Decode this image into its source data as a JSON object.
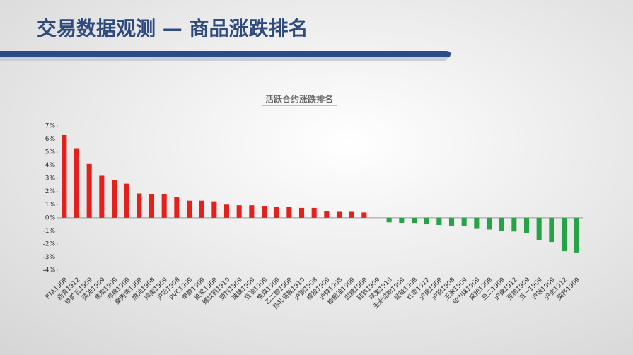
{
  "header": {
    "title": "交易数据观测 — 商品涨跌排名"
  },
  "chart_data": {
    "type": "bar",
    "title": "活跃合约涨跌排名",
    "categories": [
      "PTA1909",
      "沥青1912",
      "铁矿石1909",
      "菜油1909",
      "焦炭1909",
      "郑棉1909",
      "聚丙烯1909",
      "燃油1908",
      "鸡蛋1909",
      "沪铅1908",
      "PVC1909",
      "甲醇1909",
      "纸浆1909",
      "螺纹钢1910",
      "塑料1909",
      "玻璃1909",
      "豆油1909",
      "焦煤1909",
      "乙二醇1909",
      "热轧卷板1910",
      "沪铜1908",
      "橡胶1909",
      "沪锌1908",
      "棕榈油1909",
      "白糖1909",
      "硅铁1909",
      "苹果1910",
      "玉米淀粉1909",
      "锰硅1909",
      "红枣1912",
      "沪锡1909",
      "沪铝1908",
      "玉米1909",
      "动力煤1909",
      "菜粕1909",
      "豆二1909",
      "沪镍1912",
      "豆粕1909",
      "豆一1909",
      "沪银1909",
      "沪金1912",
      "菜籽1909"
    ],
    "values": [
      6.3,
      5.3,
      4.1,
      3.2,
      2.85,
      2.6,
      1.85,
      1.8,
      1.8,
      1.6,
      1.3,
      1.3,
      1.25,
      1.0,
      0.95,
      0.95,
      0.85,
      0.8,
      0.8,
      0.75,
      0.75,
      0.5,
      0.45,
      0.45,
      0.4,
      0,
      -0.35,
      -0.4,
      -0.45,
      -0.5,
      -0.55,
      -0.6,
      -0.65,
      -0.85,
      -0.9,
      -1.0,
      -1.05,
      -1.15,
      -1.7,
      -1.85,
      -2.55,
      -2.7
    ],
    "positive_color": "#e3201b",
    "negative_color": "#26a346",
    "ylim": [
      -4,
      7
    ],
    "yticks": [
      {
        "value": -4,
        "label": "-4%"
      },
      {
        "value": -3,
        "label": "-3%"
      },
      {
        "value": -2,
        "label": "-2%"
      },
      {
        "value": -1,
        "label": "-1%"
      },
      {
        "value": 0,
        "label": "0%"
      },
      {
        "value": 1,
        "label": "1%"
      },
      {
        "value": 2,
        "label": "2%"
      },
      {
        "value": 3,
        "label": "3%"
      },
      {
        "value": 4,
        "label": "4%"
      },
      {
        "value": 5,
        "label": "5%"
      },
      {
        "value": 6,
        "label": "6%"
      },
      {
        "value": 7,
        "label": "7%"
      }
    ]
  }
}
